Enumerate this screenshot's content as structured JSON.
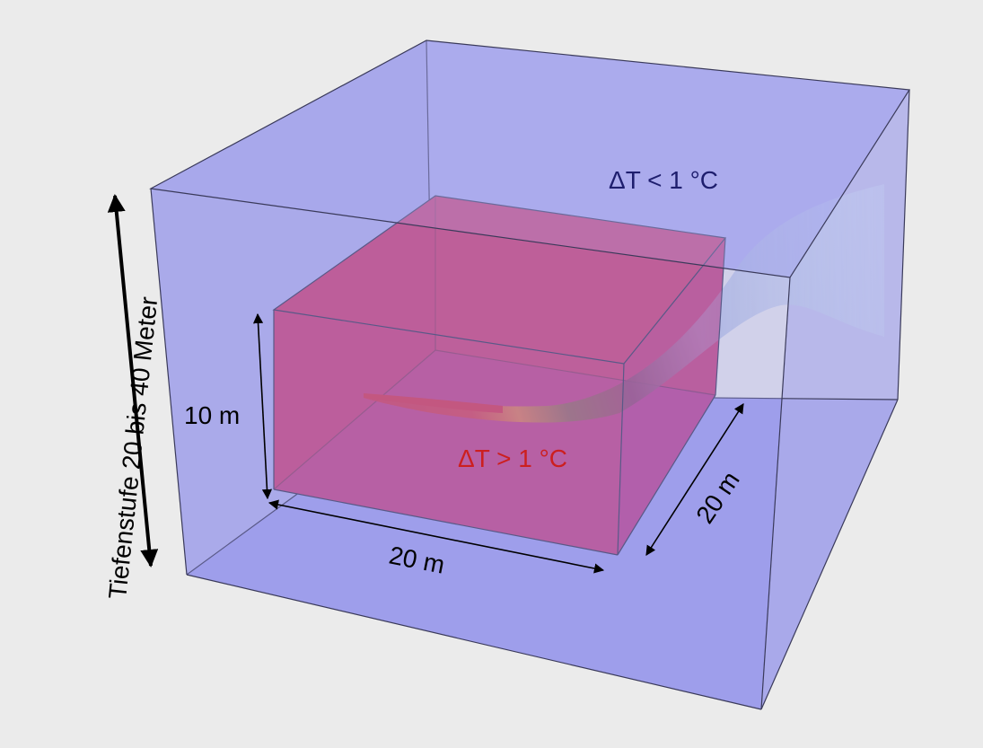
{
  "labels": {
    "depth_range": "Tiefenstufe 20 bis 40 Meter",
    "inner_height": "10 m",
    "inner_width": "20 m",
    "inner_depth": "20 m",
    "delta_cold": "ΔT < 1 °C",
    "delta_warm": "ΔT > 1 °C"
  },
  "colors": {
    "background": "#ebebeb",
    "outer_volume": "#9a9ae8",
    "inner_volume": "#d0406e",
    "plume_hot": "#e0281e",
    "plume_mid": "#ffe020",
    "plume_green": "#3ca83c",
    "plume_cold": "#b4c8f0",
    "text_cold": "#1e1e6e",
    "text_warm": "#cc1f1f"
  }
}
